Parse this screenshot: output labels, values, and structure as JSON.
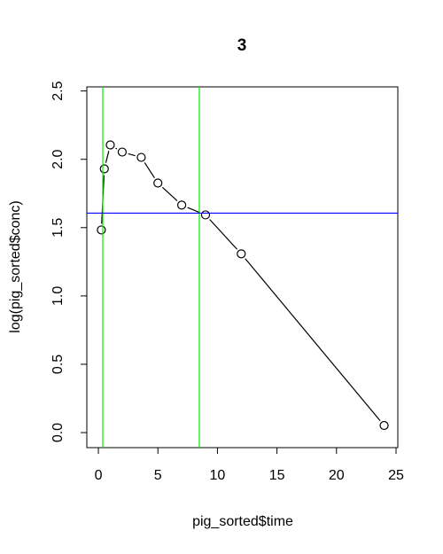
{
  "chart_data": {
    "type": "line",
    "title": "3",
    "x_label": "pig_sorted$time",
    "y_label": "log(pig_sorted$conc)",
    "x": [
      0.25,
      0.5,
      1,
      2,
      3.6,
      5,
      7,
      9,
      12,
      24
    ],
    "series": [
      {
        "color": "#000000",
        "values": [
          1.483,
          1.93,
          2.105,
          2.053,
          2.014,
          1.826,
          1.665,
          1.593,
          1.308,
          0.052
        ]
      }
    ],
    "vlines": [
      0.37,
      8.48
    ],
    "vline_color": "#00ee00",
    "hline": 1.606,
    "hline_color": "#0000ff",
    "xlim": [
      -0.97,
      25.15
    ],
    "ylim": [
      -0.11,
      2.53
    ],
    "xticks": [
      0,
      5,
      10,
      15,
      20,
      25
    ],
    "yticks": [
      {
        "value": 0,
        "label": "0.0"
      },
      0.5,
      {
        "value": 1,
        "label": "1.0"
      },
      1.5,
      {
        "value": 2,
        "label": "2.0"
      },
      2.5
    ]
  }
}
